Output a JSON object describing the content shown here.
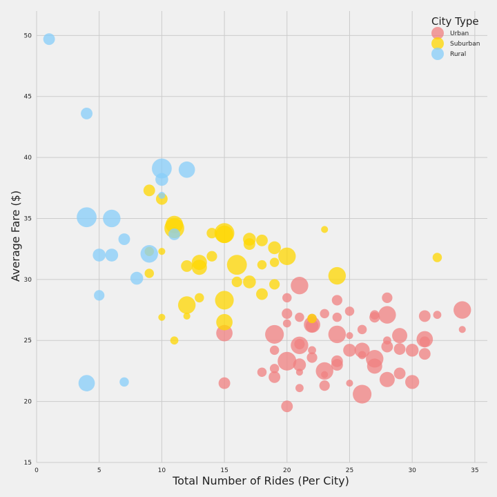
{
  "chart_data": {
    "type": "scatter",
    "xlabel": "Total Number of Rides (Per City)",
    "ylabel": "Average Fare ($)",
    "xlim": [
      0,
      36
    ],
    "ylim": [
      15,
      52
    ],
    "xticks": [
      0,
      5,
      10,
      15,
      20,
      25,
      30,
      35
    ],
    "yticks": [
      15,
      20,
      25,
      30,
      35,
      40,
      45,
      50
    ],
    "grid": true,
    "legend": {
      "title": "City Type",
      "position": "top-right"
    },
    "size_encoding": "number of drivers per city",
    "colors": {
      "Urban": "#f08080",
      "Suburban": "#ffd700",
      "Rural": "#87cefa"
    },
    "series": [
      {
        "name": "Urban",
        "color": "#f08080",
        "points": [
          {
            "x": 34,
            "y": 27.5,
            "s": 12
          },
          {
            "x": 34,
            "y": 25.9,
            "s": 3
          },
          {
            "x": 32,
            "y": 27.1,
            "s": 4
          },
          {
            "x": 31,
            "y": 27.0,
            "s": 7
          },
          {
            "x": 31,
            "y": 25.1,
            "s": 11
          },
          {
            "x": 31,
            "y": 24.9,
            "s": 6
          },
          {
            "x": 31,
            "y": 23.9,
            "s": 7
          },
          {
            "x": 30,
            "y": 24.2,
            "s": 8
          },
          {
            "x": 30,
            "y": 21.6,
            "s": 9
          },
          {
            "x": 29,
            "y": 25.4,
            "s": 10
          },
          {
            "x": 29,
            "y": 24.3,
            "s": 7
          },
          {
            "x": 29,
            "y": 22.3,
            "s": 7
          },
          {
            "x": 28,
            "y": 28.5,
            "s": 6
          },
          {
            "x": 28,
            "y": 27.1,
            "s": 12
          },
          {
            "x": 28,
            "y": 25.0,
            "s": 4
          },
          {
            "x": 28,
            "y": 24.5,
            "s": 7
          },
          {
            "x": 28,
            "y": 21.8,
            "s": 10
          },
          {
            "x": 27,
            "y": 27.1,
            "s": 5
          },
          {
            "x": 27,
            "y": 26.9,
            "s": 6
          },
          {
            "x": 27,
            "y": 23.5,
            "s": 12
          },
          {
            "x": 27,
            "y": 22.9,
            "s": 10
          },
          {
            "x": 26,
            "y": 25.9,
            "s": 5
          },
          {
            "x": 26,
            "y": 24.2,
            "s": 10
          },
          {
            "x": 26,
            "y": 23.8,
            "s": 4
          },
          {
            "x": 26,
            "y": 20.6,
            "s": 13
          },
          {
            "x": 25,
            "y": 27.4,
            "s": 5
          },
          {
            "x": 25,
            "y": 25.4,
            "s": 3
          },
          {
            "x": 25,
            "y": 24.2,
            "s": 8
          },
          {
            "x": 25,
            "y": 21.5,
            "s": 3
          },
          {
            "x": 24,
            "y": 28.3,
            "s": 6
          },
          {
            "x": 24,
            "y": 26.9,
            "s": 5
          },
          {
            "x": 24,
            "y": 25.5,
            "s": 12
          },
          {
            "x": 24,
            "y": 23.3,
            "s": 7
          },
          {
            "x": 24,
            "y": 23.0,
            "s": 7
          },
          {
            "x": 23,
            "y": 27.2,
            "s": 5
          },
          {
            "x": 23,
            "y": 22.5,
            "s": 12
          },
          {
            "x": 23,
            "y": 22.2,
            "s": 3
          },
          {
            "x": 23,
            "y": 21.3,
            "s": 6
          },
          {
            "x": 22,
            "y": 26.8,
            "s": 5
          },
          {
            "x": 22,
            "y": 26.3,
            "s": 11
          },
          {
            "x": 22,
            "y": 26.2,
            "s": 8
          },
          {
            "x": 22,
            "y": 24.2,
            "s": 4
          },
          {
            "x": 22,
            "y": 23.6,
            "s": 6
          },
          {
            "x": 21,
            "y": 29.5,
            "s": 12
          },
          {
            "x": 21,
            "y": 26.9,
            "s": 5
          },
          {
            "x": 21,
            "y": 24.7,
            "s": 6
          },
          {
            "x": 21,
            "y": 24.6,
            "s": 12
          },
          {
            "x": 21,
            "y": 23.0,
            "s": 8
          },
          {
            "x": 21,
            "y": 22.4,
            "s": 3
          },
          {
            "x": 21,
            "y": 21.1,
            "s": 4
          },
          {
            "x": 20,
            "y": 28.5,
            "s": 5
          },
          {
            "x": 20,
            "y": 27.2,
            "s": 6
          },
          {
            "x": 20,
            "y": 26.4,
            "s": 4
          },
          {
            "x": 20,
            "y": 23.3,
            "s": 13
          },
          {
            "x": 20,
            "y": 19.6,
            "s": 7
          },
          {
            "x": 19,
            "y": 25.5,
            "s": 13
          },
          {
            "x": 19,
            "y": 24.2,
            "s": 5
          },
          {
            "x": 19,
            "y": 22.7,
            "s": 5
          },
          {
            "x": 19,
            "y": 22.0,
            "s": 7
          },
          {
            "x": 18,
            "y": 22.4,
            "s": 5
          },
          {
            "x": 15,
            "y": 25.6,
            "s": 11
          },
          {
            "x": 15,
            "y": 21.5,
            "s": 7
          }
        ]
      },
      {
        "name": "Suburban",
        "color": "#ffd700",
        "points": [
          {
            "x": 32,
            "y": 31.8,
            "s": 5
          },
          {
            "x": 24,
            "y": 30.3,
            "s": 12
          },
          {
            "x": 23,
            "y": 34.1,
            "s": 3
          },
          {
            "x": 22,
            "y": 26.8,
            "s": 5
          },
          {
            "x": 20,
            "y": 31.9,
            "s": 12
          },
          {
            "x": 19,
            "y": 32.6,
            "s": 8
          },
          {
            "x": 19,
            "y": 31.4,
            "s": 5
          },
          {
            "x": 19,
            "y": 29.6,
            "s": 6
          },
          {
            "x": 18,
            "y": 33.2,
            "s": 7
          },
          {
            "x": 18,
            "y": 31.2,
            "s": 5
          },
          {
            "x": 18,
            "y": 28.8,
            "s": 7
          },
          {
            "x": 17,
            "y": 33.3,
            "s": 8
          },
          {
            "x": 17,
            "y": 32.9,
            "s": 7
          },
          {
            "x": 17,
            "y": 29.8,
            "s": 8
          },
          {
            "x": 16,
            "y": 31.2,
            "s": 14
          },
          {
            "x": 16,
            "y": 29.8,
            "s": 6
          },
          {
            "x": 15,
            "y": 33.8,
            "s": 14
          },
          {
            "x": 15,
            "y": 33.7,
            "s": 12
          },
          {
            "x": 15,
            "y": 28.3,
            "s": 13
          },
          {
            "x": 15,
            "y": 26.5,
            "s": 11
          },
          {
            "x": 14,
            "y": 33.8,
            "s": 6
          },
          {
            "x": 14,
            "y": 31.9,
            "s": 6
          },
          {
            "x": 13,
            "y": 31.4,
            "s": 10
          },
          {
            "x": 13,
            "y": 31.0,
            "s": 10
          },
          {
            "x": 13,
            "y": 28.5,
            "s": 5
          },
          {
            "x": 12,
            "y": 31.1,
            "s": 7
          },
          {
            "x": 12,
            "y": 27.9,
            "s": 12
          },
          {
            "x": 12,
            "y": 27.0,
            "s": 3
          },
          {
            "x": 11,
            "y": 34.5,
            "s": 12
          },
          {
            "x": 11,
            "y": 34.2,
            "s": 14
          },
          {
            "x": 11,
            "y": 25.0,
            "s": 4
          },
          {
            "x": 10,
            "y": 36.6,
            "s": 7
          },
          {
            "x": 10,
            "y": 32.3,
            "s": 3
          },
          {
            "x": 10,
            "y": 26.9,
            "s": 3
          },
          {
            "x": 9,
            "y": 37.3,
            "s": 7
          },
          {
            "x": 9,
            "y": 32.3,
            "s": 5
          },
          {
            "x": 9,
            "y": 30.5,
            "s": 5
          }
        ]
      },
      {
        "name": "Rural",
        "color": "#87cefa",
        "points": [
          {
            "x": 1,
            "y": 49.7,
            "s": 7
          },
          {
            "x": 4,
            "y": 43.6,
            "s": 7
          },
          {
            "x": 4,
            "y": 35.1,
            "s": 14
          },
          {
            "x": 4,
            "y": 21.5,
            "s": 11
          },
          {
            "x": 5,
            "y": 32.0,
            "s": 8
          },
          {
            "x": 5,
            "y": 28.7,
            "s": 6
          },
          {
            "x": 6,
            "y": 35.0,
            "s": 12
          },
          {
            "x": 6,
            "y": 32.0,
            "s": 8
          },
          {
            "x": 7,
            "y": 33.3,
            "s": 7
          },
          {
            "x": 7,
            "y": 21.6,
            "s": 5
          },
          {
            "x": 8,
            "y": 30.1,
            "s": 8
          },
          {
            "x": 9,
            "y": 32.1,
            "s": 12
          },
          {
            "x": 10,
            "y": 39.1,
            "s": 14
          },
          {
            "x": 10,
            "y": 38.2,
            "s": 8
          },
          {
            "x": 10,
            "y": 36.9,
            "s": 3
          },
          {
            "x": 11,
            "y": 33.7,
            "s": 7
          },
          {
            "x": 12,
            "y": 39.0,
            "s": 11
          }
        ]
      }
    ]
  }
}
